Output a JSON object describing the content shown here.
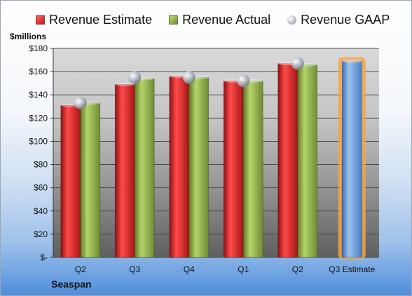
{
  "company": "Seaspan",
  "y_unit_label": "$millions",
  "legend": [
    {
      "label": "Revenue Estimate",
      "color": "#d42a2a",
      "shape": "square"
    },
    {
      "label": "Revenue Actual",
      "color": "#8fb04a",
      "shape": "square"
    },
    {
      "label": "Revenue GAAP",
      "color": "#b8bec6",
      "shape": "circle"
    }
  ],
  "chart_data": {
    "type": "bar",
    "title": "",
    "xlabel": "",
    "ylabel": "$millions",
    "ylim": [
      0,
      180
    ],
    "y_ticks": [
      "$-",
      "$20",
      "$40",
      "$60",
      "$80",
      "$100",
      "$120",
      "$140",
      "$160",
      "$180"
    ],
    "y_tick_values": [
      0,
      20,
      40,
      60,
      80,
      100,
      120,
      140,
      160,
      180
    ],
    "categories": [
      "Q2",
      "Q3",
      "Q4",
      "Q1",
      "Q2",
      "Q3 Estimate"
    ],
    "series": [
      {
        "name": "Revenue Estimate",
        "color": "#d42a2a",
        "values": [
          131,
          149,
          156,
          152,
          167,
          null
        ]
      },
      {
        "name": "Revenue Actual",
        "color": "#8fb04a",
        "values": [
          133,
          154,
          155,
          152,
          166,
          null
        ]
      },
      {
        "name": "Revenue GAAP",
        "color": "#b8bec6",
        "type": "marker",
        "values": [
          133,
          155,
          155,
          152,
          167,
          null
        ]
      },
      {
        "name": "Q3 Estimate",
        "color": "#6f9fd8",
        "highlight": "#f5a34a",
        "values": [
          null,
          null,
          null,
          null,
          null,
          169
        ]
      }
    ],
    "grid": true,
    "legend_position": "top"
  }
}
